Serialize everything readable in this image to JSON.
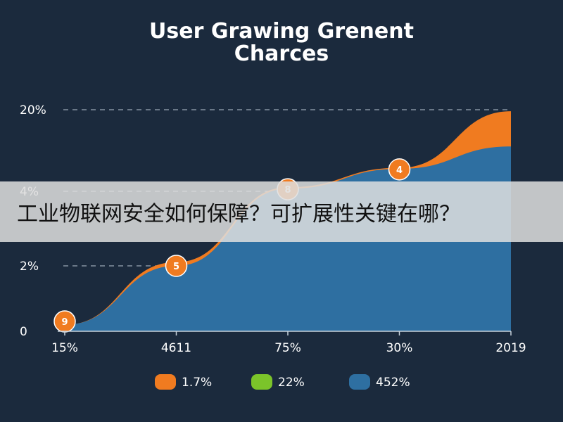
{
  "chart_data": {
    "type": "area",
    "title_lines": [
      "User Grawing Grenent",
      "Charces"
    ],
    "y_ticks": [
      "0",
      "2%",
      "4%",
      "20%"
    ],
    "x_ticks": [
      "15%",
      "4611",
      "75%",
      "30%",
      "2019"
    ],
    "ylim": [
      0,
      20
    ],
    "grid": true,
    "legend_position": "bottom",
    "series": [
      {
        "name": "452%",
        "color": "#2e6fa1",
        "x": [
          0,
          1,
          2,
          3,
          4
        ],
        "values": [
          0.2,
          2.0,
          4.5,
          8.4,
          12.8
        ]
      },
      {
        "name": "1.7%",
        "color": "#f07b20",
        "x": [
          0,
          1,
          2,
          3,
          4
        ],
        "values": [
          0.2,
          2.1,
          4.8,
          8.6,
          19.7
        ]
      }
    ],
    "legend": [
      {
        "label": "1.7%",
        "color": "#f07b20"
      },
      {
        "label": "22%",
        "color": "#7bc42a"
      },
      {
        "label": "452%",
        "color": "#2e6fa1"
      }
    ],
    "markers": [
      {
        "x": 0.0,
        "y": 0.3,
        "label": "9"
      },
      {
        "x": 1.0,
        "y": 2.0,
        "label": "5"
      },
      {
        "x": 2.0,
        "y": 4.4,
        "label": "8"
      },
      {
        "x": 3.0,
        "y": 8.3,
        "label": "4"
      }
    ]
  },
  "overlay": {
    "text": "工业物联网安全如何保障？可扩展性关键在哪？"
  }
}
